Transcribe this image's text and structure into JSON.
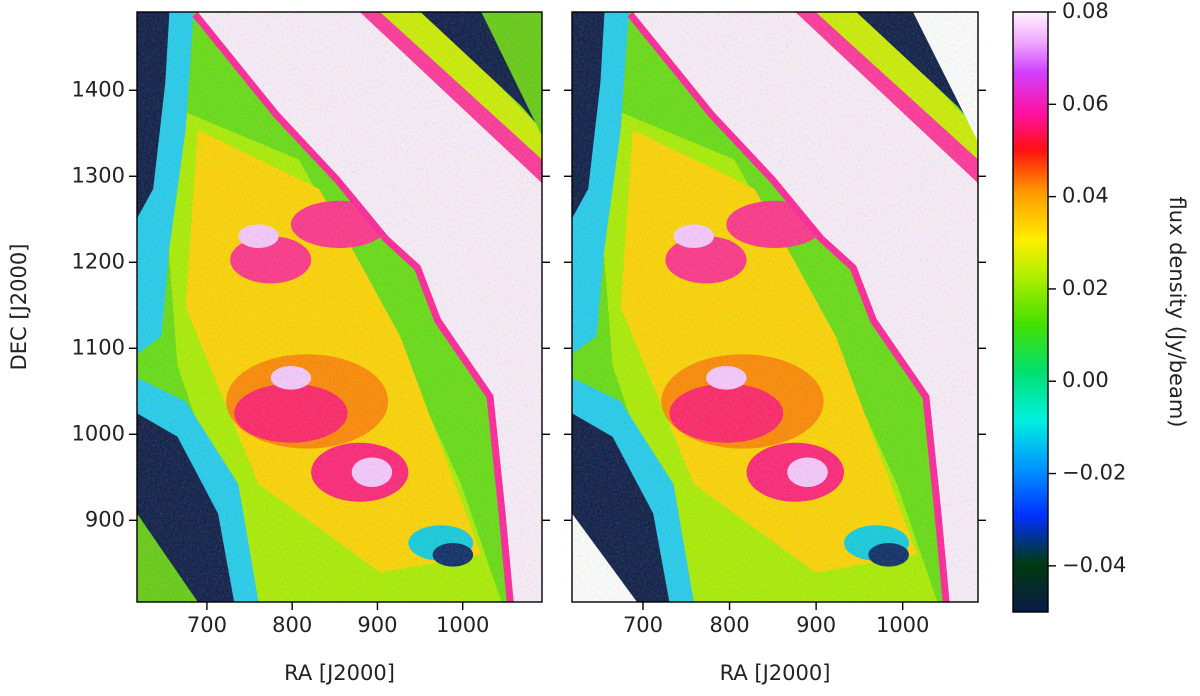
{
  "chart_data": [
    {
      "type": "heatmap",
      "xlabel": "RA [J2000]",
      "ylabel": "DEC [J2000]",
      "xlim": [
        618,
        1093
      ],
      "ylim": [
        805,
        1491
      ],
      "xticks": [
        700,
        800,
        900,
        1000
      ],
      "yticks": [
        900,
        1000,
        1100,
        1200,
        1300,
        1400
      ],
      "show_ytick_labels": true
    },
    {
      "type": "heatmap",
      "xlabel": "RA [J2000]",
      "xlim": [
        618,
        1087
      ],
      "ylim": [
        805,
        1491
      ],
      "xticks": [
        700,
        800,
        900,
        1000
      ],
      "yticks": [
        900,
        1000,
        1100,
        1200,
        1300,
        1400
      ],
      "show_ytick_labels": false
    }
  ],
  "colorbar": {
    "label": "flux density (Jy/beam)",
    "clim": [
      -0.05,
      0.08
    ],
    "ticks": [
      {
        "value": -0.04,
        "label": "−0.04"
      },
      {
        "value": -0.02,
        "label": "−0.02"
      },
      {
        "value": 0,
        "label": "0.00"
      },
      {
        "value": 0.02,
        "label": "0.02"
      },
      {
        "value": 0.04,
        "label": "0.04"
      },
      {
        "value": 0.06,
        "label": "0.06"
      },
      {
        "value": 0.08,
        "label": "0.08"
      }
    ]
  }
}
